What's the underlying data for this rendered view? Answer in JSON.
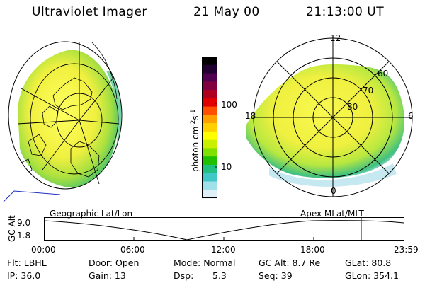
{
  "header": {
    "instrument": "Ultraviolet Imager",
    "date": "21 May 00",
    "time": "21:13:00 UT"
  },
  "colorbar": {
    "unit_text": "photon cm",
    "unit_exp1": "-2",
    "unit_mid": "s",
    "unit_exp2": "-1",
    "tick_high": "100",
    "tick_low": "10",
    "colors": [
      "#000000",
      "#200030",
      "#500050",
      "#800040",
      "#b00020",
      "#e00000",
      "#ff5000",
      "#ffa000",
      "#ffd000",
      "#ffff00",
      "#c8f000",
      "#80e000",
      "#20c000",
      "#20c080",
      "#40c8c8",
      "#a0e0e8",
      "#e0f0f8"
    ]
  },
  "polar_plot": {
    "mlt_labels": {
      "top": "12",
      "left": "18",
      "right": "6",
      "bottom": "0"
    },
    "lat_labels": [
      "60",
      "70",
      "80"
    ]
  },
  "timeline": {
    "left_label": "Geographic Lat/Lon",
    "right_label": "Apex MLat/MLT",
    "axis_label": "GC Alt",
    "y_high": "9.0",
    "y_low": "1.8",
    "ticks": [
      "00:00",
      "06:00",
      "12:00",
      "18:00",
      "23:59"
    ],
    "marker_color": "#e00000"
  },
  "info": {
    "filter": "Flt: LBHL",
    "door": "Door: Open",
    "mode": "Mode: Normal",
    "gc_alt": "GC Alt: 8.7 Re",
    "glat": "GLat: 80.8",
    "ip": "IP: 36.0",
    "gain": "Gain: 13",
    "dsp_label": "Dsp:",
    "dsp_value": "5.3",
    "seq": "Seq: 39",
    "glon": "GLon: 354.1"
  }
}
